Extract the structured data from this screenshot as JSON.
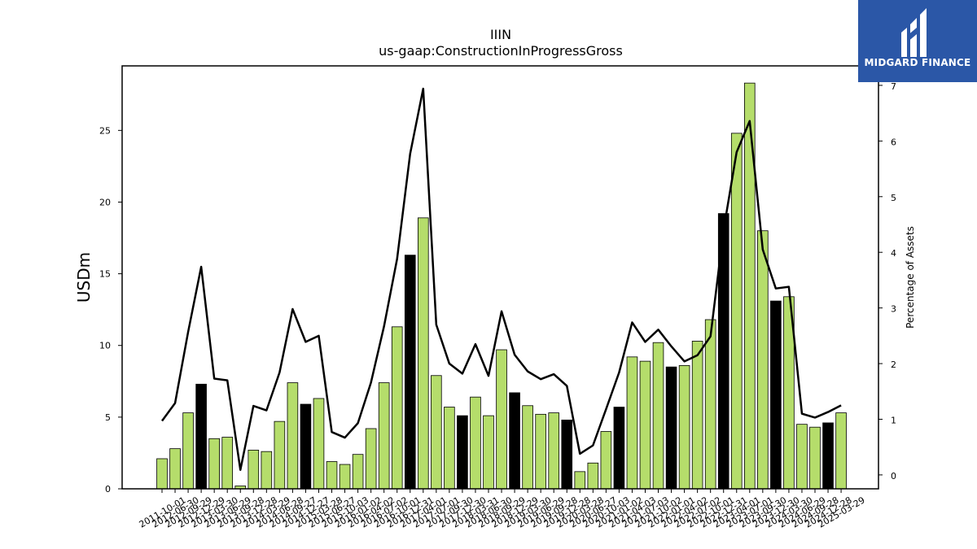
{
  "chart_data": {
    "type": "bar",
    "title": "IIIN",
    "subtitle": "us-gaap:ConstructionInProgressGross",
    "ylabel": "USDm",
    "y2label": "Percentage of Assets",
    "ylim": [
      0,
      29.5
    ],
    "y2lim": [
      -0.25,
      7.35
    ],
    "yticks": [
      0,
      5,
      10,
      15,
      20,
      25
    ],
    "y2ticks": [
      0,
      1,
      2,
      3,
      4,
      5,
      6,
      7
    ],
    "grid": false,
    "colors": {
      "bar": "#b5dd6b",
      "bar_highlight": "#000000",
      "line": "#000000"
    },
    "categories": [
      "2011-10-01",
      "2012-06-30",
      "2012-09-29",
      "2012-12-29",
      "2013-03-30",
      "2013-06-29",
      "2013-09-28",
      "2013-12-28",
      "2014-03-29",
      "2014-06-28",
      "2014-09-27",
      "2014-12-27",
      "2015-03-28",
      "2015-06-27",
      "2015-10-03",
      "2016-01-02",
      "2016-04-02",
      "2016-07-02",
      "2016-10-01",
      "2016-12-31",
      "2017-04-01",
      "2017-07-01",
      "2017-09-30",
      "2017-12-30",
      "2018-03-31",
      "2018-06-30",
      "2018-09-29",
      "2018-12-29",
      "2019-03-30",
      "2019-06-29",
      "2019-09-28",
      "2019-12-28",
      "2020-03-28",
      "2020-06-27",
      "2020-10-03",
      "2021-01-02",
      "2021-04-03",
      "2021-07-03",
      "2021-10-02",
      "2022-01-01",
      "2022-04-02",
      "2022-07-02",
      "2022-10-01",
      "2022-12-31",
      "2023-04-01",
      "2023-07-01",
      "2023-09-30",
      "2023-12-30",
      "2024-03-30",
      "2024-06-29",
      "2024-09-28",
      "2024-12-28",
      "2025-03-29"
    ],
    "series": [
      {
        "type": "bar",
        "axis": "left",
        "values": [
          2.1,
          2.8,
          5.3,
          7.3,
          3.5,
          3.6,
          0.2,
          2.7,
          2.6,
          4.7,
          7.4,
          5.9,
          6.3,
          1.9,
          1.7,
          2.4,
          4.2,
          7.4,
          11.3,
          16.3,
          18.9,
          7.9,
          5.7,
          5.1,
          6.4,
          5.1,
          9.7,
          6.7,
          5.8,
          5.2,
          5.3,
          4.8,
          1.2,
          1.8,
          4.0,
          5.7,
          9.2,
          8.9,
          10.2,
          8.5,
          8.6,
          10.3,
          11.8,
          19.2,
          24.8,
          28.3,
          18.0,
          13.1,
          13.4,
          4.5,
          4.3,
          4.6,
          5.3
        ],
        "highlight": [
          3,
          11,
          19,
          23,
          27,
          31,
          35,
          39,
          43,
          47,
          51
        ]
      },
      {
        "type": "line",
        "axis": "right",
        "values": [
          0.97,
          1.29,
          2.57,
          3.74,
          1.73,
          1.7,
          0.09,
          1.24,
          1.16,
          1.84,
          2.98,
          2.39,
          2.5,
          0.77,
          0.67,
          0.93,
          1.66,
          2.67,
          3.88,
          5.77,
          6.94,
          2.7,
          2.0,
          1.82,
          2.35,
          1.78,
          2.94,
          2.16,
          1.86,
          1.72,
          1.81,
          1.6,
          0.38,
          0.53,
          1.18,
          1.84,
          2.74,
          2.39,
          2.61,
          2.31,
          2.04,
          2.15,
          2.49,
          4.4,
          5.8,
          6.36,
          4.05,
          3.35,
          3.38,
          1.1,
          1.03,
          1.13,
          1.25
        ]
      }
    ],
    "legend": "none"
  },
  "logo": {
    "text": "MIDGARD FINANCE"
  }
}
